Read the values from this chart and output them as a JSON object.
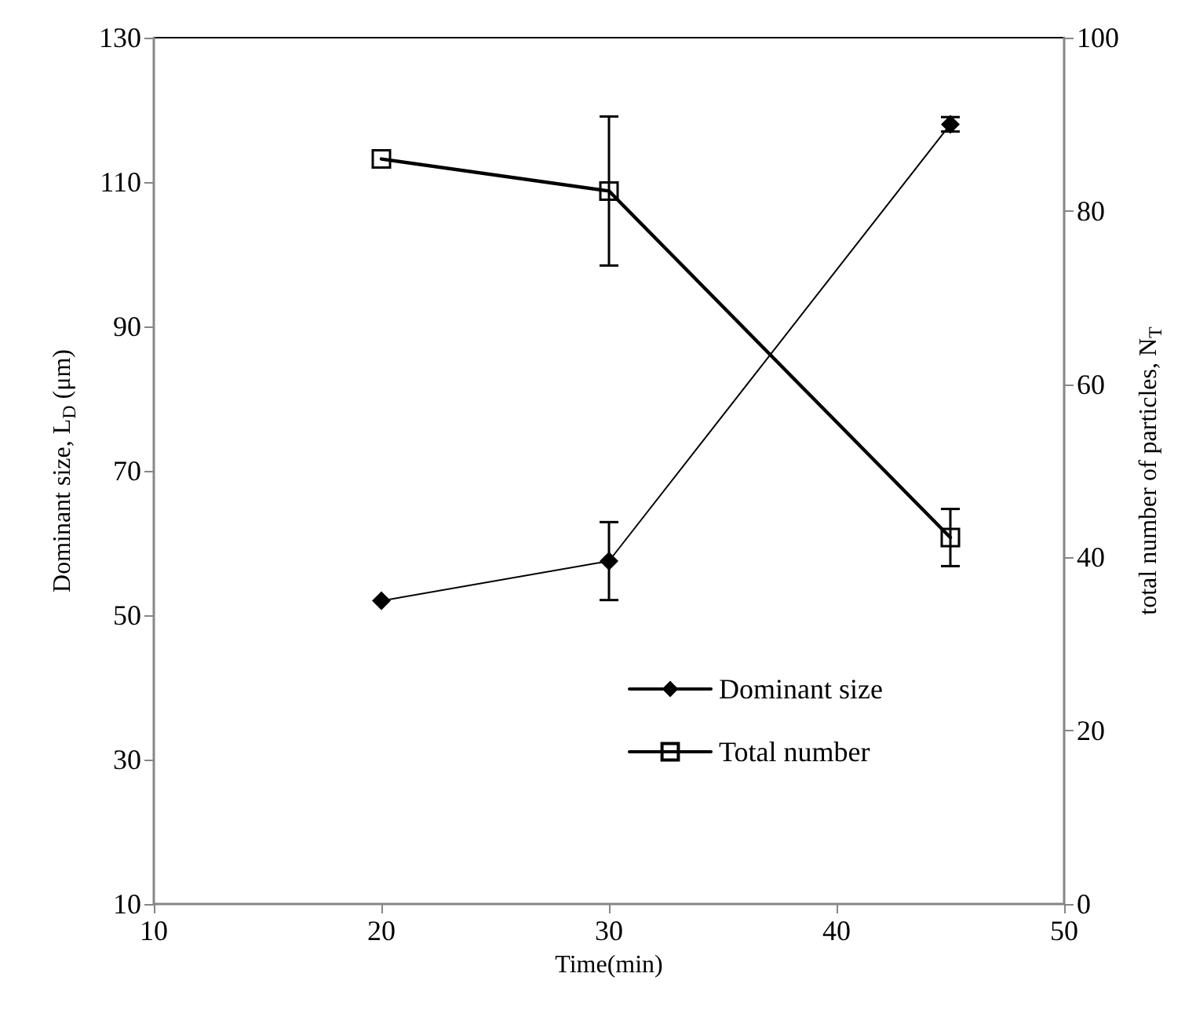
{
  "chart_data": {
    "type": "line",
    "xlabel": "Time(min)",
    "ylabel": "Dominant size, L$_{D}$ (μm)",
    "y2label": "total number of particles, N$_{T}$",
    "x": [
      20,
      30,
      45
    ],
    "series": [
      {
        "name": "Dominant size",
        "color": "#000000",
        "marker": "diamond",
        "values": [
          52,
          57.5,
          118
        ],
        "errors": [
          null,
          5.4,
          1
        ]
      },
      {
        "name": "Total number",
        "color": "#000000",
        "marker": "square",
        "axis": "y2",
        "values": [
          86,
          82.3,
          42.3
        ],
        "errors": [
          null,
          8.6,
          3.3
        ]
      }
    ],
    "xlim": [
      10,
      50
    ],
    "xticks": [
      10,
      20,
      30,
      40,
      50
    ],
    "ylim": [
      10,
      130
    ],
    "yticks": [
      10,
      30,
      50,
      70,
      90,
      110,
      130
    ],
    "y2lim": [
      0,
      100
    ],
    "y2ticks": [
      0,
      20,
      40,
      60,
      80,
      100
    ],
    "grid": false,
    "legend": "bottom right",
    "line_style": "solid"
  }
}
